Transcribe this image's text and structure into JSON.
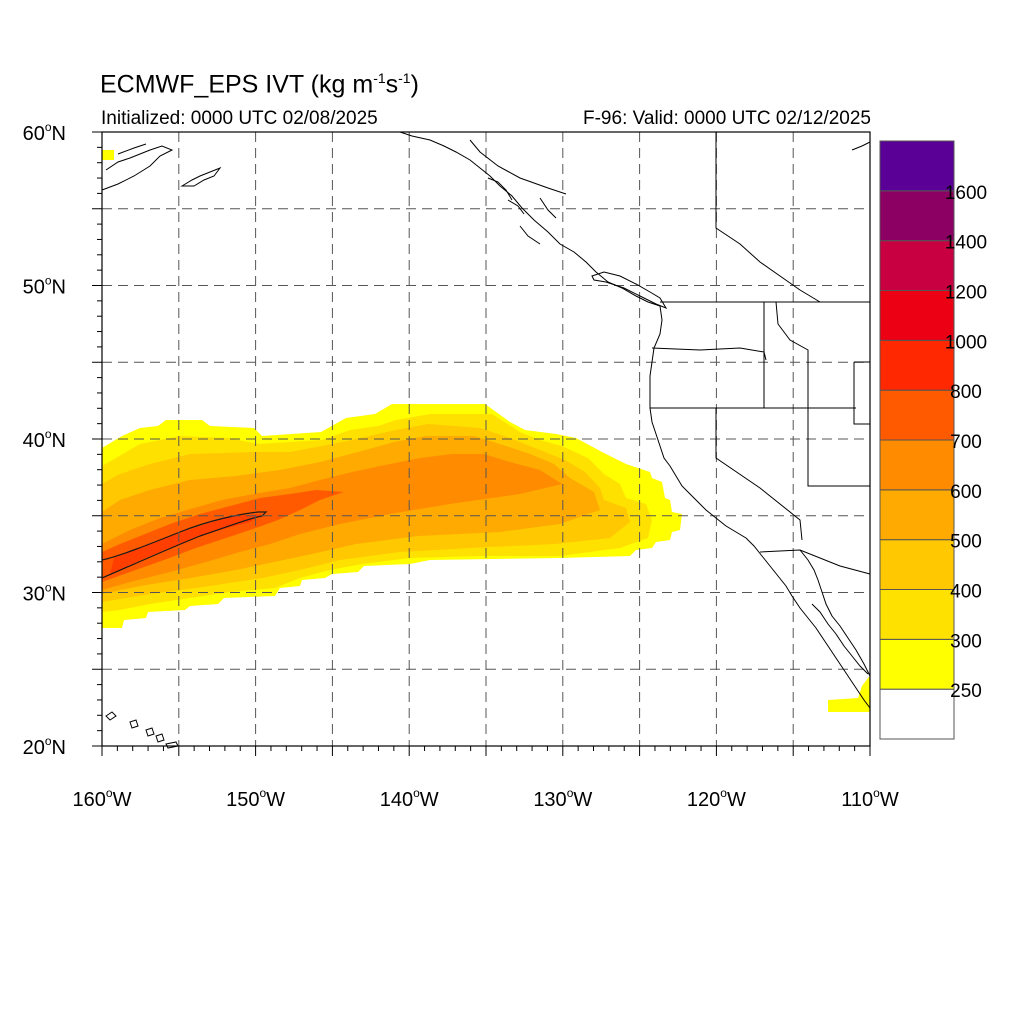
{
  "title": {
    "main": "ECMWF_EPS IVT (kg m",
    "exp1": "-1",
    "mid": "s",
    "exp2": "-1",
    "end": ")"
  },
  "subtitle_left": "Initialized: 0000 UTC 02/08/2025",
  "subtitle_right": "F-96: Valid: 0000 UTC 02/12/2025",
  "map": {
    "extent": {
      "lon": [
        -160,
        -110
      ],
      "lat": [
        20,
        60
      ]
    },
    "lat_ticks": [
      {
        "lat": 20,
        "label": "20",
        "suffix": "N"
      },
      {
        "lat": 30,
        "label": "30",
        "suffix": "N"
      },
      {
        "lat": 40,
        "label": "40",
        "suffix": "N"
      },
      {
        "lat": 50,
        "label": "50",
        "suffix": "N"
      },
      {
        "lat": 60,
        "label": "60",
        "suffix": "N"
      }
    ],
    "lon_ticks": [
      {
        "lon": -160,
        "label": "160",
        "suffix": "W"
      },
      {
        "lon": -150,
        "label": "150",
        "suffix": "W"
      },
      {
        "lon": -140,
        "label": "140",
        "suffix": "W"
      },
      {
        "lon": -130,
        "label": "130",
        "suffix": "W"
      },
      {
        "lon": -120,
        "label": "120",
        "suffix": "W"
      },
      {
        "lon": -110,
        "label": "110",
        "suffix": "W"
      }
    ],
    "grid": "dashed every 5 degrees"
  },
  "colorbar": {
    "levels": [
      250,
      300,
      400,
      500,
      600,
      700,
      800,
      1000,
      1200,
      1400,
      1600
    ],
    "labels": [
      "250",
      "300",
      "400",
      "500",
      "600",
      "700",
      "800",
      "1000",
      "1200",
      "1400",
      "1600"
    ],
    "colors": [
      "#ffffff",
      "#ffff00",
      "#ffe100",
      "#ffc800",
      "#ffaa00",
      "#ff8c00",
      "#ff5a00",
      "#ff2800",
      "#eb0014",
      "#c80041",
      "#8c0064",
      "#5a0096"
    ]
  }
}
